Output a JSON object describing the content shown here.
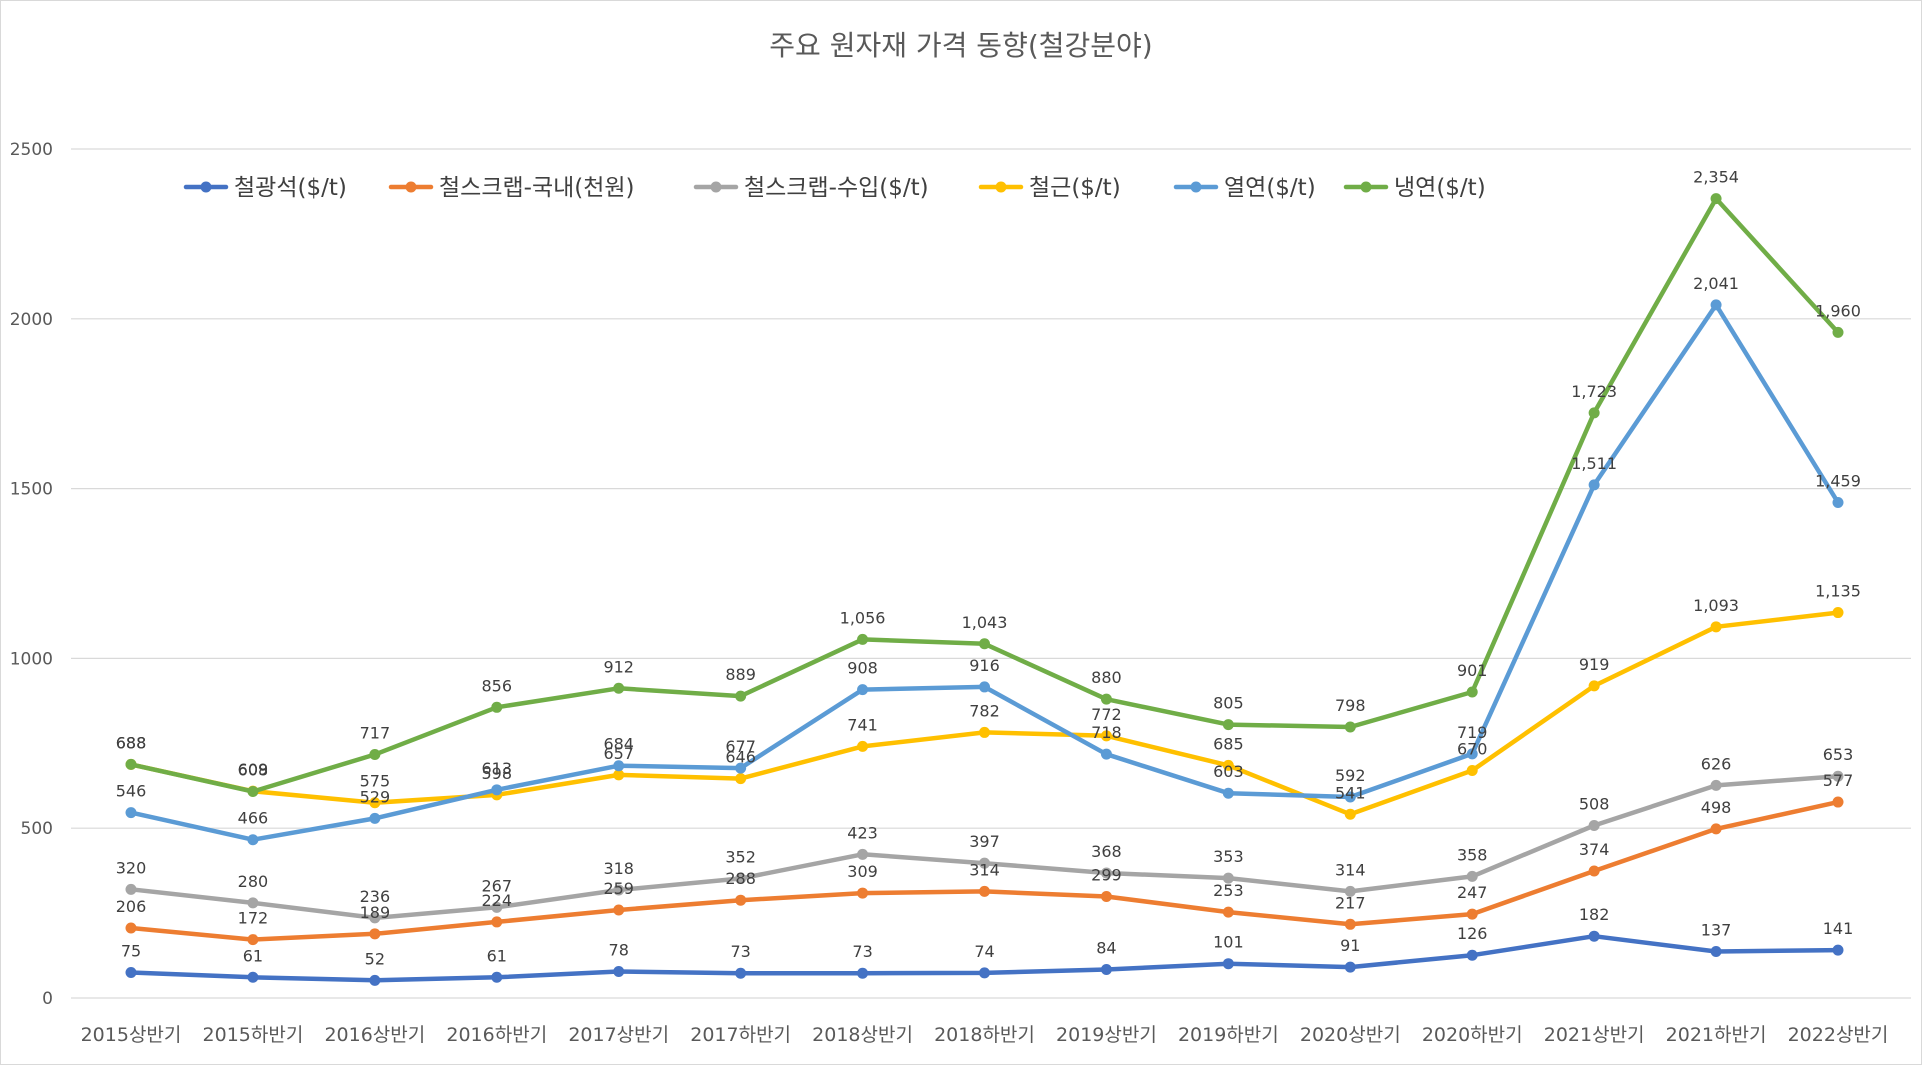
{
  "chart_data": {
    "type": "line",
    "title": "주요 원자재 가격 동향(철강분야)",
    "xlabel": "",
    "ylabel": "",
    "ylim": [
      0,
      2500
    ],
    "yticks": [
      0,
      500,
      1000,
      1500,
      2000,
      2500
    ],
    "ytick_labels": [
      "0",
      "500",
      "1000",
      "1500",
      "2000",
      "2500"
    ],
    "grid": true,
    "legend_position": "top-left",
    "categories": [
      "2015상반기",
      "2015하반기",
      "2016상반기",
      "2016하반기",
      "2017상반기",
      "2017하반기",
      "2018상반기",
      "2018하반기",
      "2019상반기",
      "2019하반기",
      "2020상반기",
      "2020하반기",
      "2021상반기",
      "2021하반기",
      "2022상반기"
    ],
    "series": [
      {
        "name": "철광석($/t)",
        "color": "#4472C4",
        "values": [
          75,
          61,
          52,
          61,
          78,
          73,
          73,
          74,
          84,
          101,
          91,
          126,
          182,
          137,
          141
        ],
        "labels": [
          "75",
          "61",
          "52",
          "61",
          "78",
          "73",
          "73",
          "74",
          "84",
          "101",
          "91",
          "126",
          "182",
          "137",
          "141"
        ]
      },
      {
        "name": "철스크랩-국내(천원)",
        "color": "#ED7D31",
        "values": [
          206,
          172,
          189,
          224,
          259,
          288,
          309,
          314,
          299,
          253,
          217,
          247,
          374,
          498,
          577
        ],
        "labels": [
          "206",
          "172",
          "189",
          "224",
          "259",
          "288",
          "309",
          "314",
          "299",
          "253",
          "217",
          "247",
          "374",
          "498",
          "577"
        ]
      },
      {
        "name": "철스크랩-수입($/t)",
        "color": "#A5A5A5",
        "values": [
          320,
          280,
          236,
          267,
          318,
          352,
          423,
          397,
          368,
          353,
          314,
          358,
          508,
          626,
          653
        ],
        "labels": [
          "320",
          "280",
          "236",
          "267",
          "318",
          "352",
          "423",
          "397",
          "368",
          "353",
          "314",
          "358",
          "508",
          "626",
          "653"
        ]
      },
      {
        "name": "철근($/t)",
        "color": "#FFC000",
        "values": [
          688,
          609,
          575,
          598,
          657,
          646,
          741,
          782,
          772,
          685,
          541,
          670,
          919,
          1093,
          1135
        ],
        "labels": [
          "688",
          "609",
          "575",
          "598",
          "657",
          "646",
          "741",
          "782",
          "772",
          "685",
          "541",
          "670",
          "919",
          "1,093",
          "1,135"
        ]
      },
      {
        "name": "열연($/t)",
        "color": "#5B9BD5",
        "values": [
          546,
          466,
          529,
          613,
          684,
          677,
          908,
          916,
          718,
          603,
          592,
          719,
          1511,
          2041,
          1459
        ],
        "labels": [
          "546",
          "466",
          "529",
          "613",
          "684",
          "677",
          "908",
          "916",
          "718",
          "603",
          "592",
          "719",
          "1,511",
          "2,041",
          "1,459"
        ]
      },
      {
        "name": "냉연($/t)",
        "color": "#70AD47",
        "values": [
          688,
          608,
          717,
          856,
          912,
          889,
          1056,
          1043,
          880,
          805,
          798,
          901,
          1723,
          2354,
          1960
        ],
        "labels": [
          "688",
          "608",
          "717",
          "856",
          "912",
          "889",
          "1,056",
          "1,043",
          "880",
          "805",
          "798",
          "901",
          "1,723",
          "2,354",
          "1,960"
        ]
      }
    ]
  }
}
